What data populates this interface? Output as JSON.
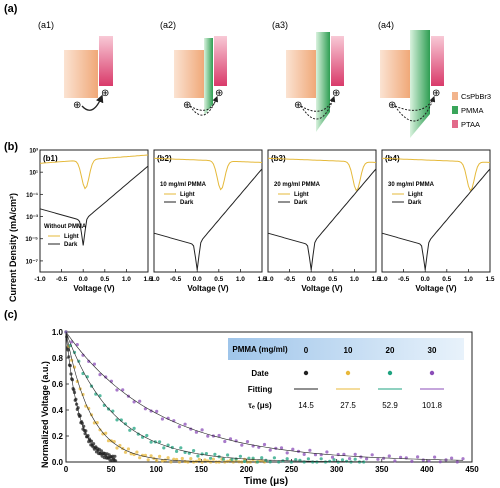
{
  "panel_a": {
    "label": "(a)",
    "subpanels": [
      "(a1)",
      "(a2)",
      "(a3)",
      "(a4)"
    ],
    "charge_symbol": "⊕",
    "legend": [
      {
        "name": "CsPbBr3",
        "color": "#f2b48c"
      },
      {
        "name": "PMMA",
        "color": "#3aa55a"
      },
      {
        "name": "PTAA",
        "color": "#e26a8a"
      }
    ]
  },
  "panel_b": {
    "label": "(b)",
    "ylabel": "Current Density (mA/cm²)",
    "panels": [
      {
        "label": "(b1)",
        "condition": "Without PMMA"
      },
      {
        "label": "(b2)",
        "condition": "10 mg/ml PMMA"
      },
      {
        "label": "(b3)",
        "condition": "20 mg/ml PMMA"
      },
      {
        "label": "(b4)",
        "condition": "30 mg/ml PMMA"
      }
    ],
    "legend": [
      "Light",
      "Dark"
    ],
    "xlabel": "Voltage (V)",
    "xticks": [
      "-1.0",
      "-0.5",
      "0.0",
      "0.5",
      "1.0",
      "1.5"
    ],
    "yticks": [
      "10³",
      "10¹",
      "10⁻¹",
      "10⁻³",
      "10⁻⁵",
      "10⁻⁷"
    ]
  },
  "chart_data": {
    "type": "scatter",
    "panel_label": "(c)",
    "xlabel": "Time (μs)",
    "ylabel": "Normalized Voltage (a.u.)",
    "xlim": [
      0,
      450
    ],
    "ylim": [
      0,
      1.0
    ],
    "xticks": [
      "0",
      "50",
      "100",
      "150",
      "200",
      "250",
      "300",
      "350",
      "400",
      "450"
    ],
    "yticks": [
      "0.0",
      "0.2",
      "0.4",
      "0.6",
      "0.8",
      "1.0"
    ],
    "legend_table": {
      "header": "PMMA (mg/ml)",
      "rows": [
        "Date",
        "Fitting",
        "τₑ (μs)"
      ],
      "columns": [
        "0",
        "10",
        "20",
        "30"
      ],
      "tau": [
        "14.5",
        "27.5",
        "52.9",
        "101.8"
      ],
      "colors": [
        "#222222",
        "#e8b83a",
        "#1fa380",
        "#8b4db8"
      ]
    },
    "series": [
      {
        "name": "0",
        "tau": 14.5,
        "xmax": 55,
        "color": "#222222"
      },
      {
        "name": "10",
        "tau": 27.5,
        "xmax": 220,
        "color": "#e8b83a"
      },
      {
        "name": "20",
        "tau": 52.9,
        "xmax": 330,
        "color": "#1fa380"
      },
      {
        "name": "30",
        "tau": 101.8,
        "xmax": 440,
        "color": "#8b4db8"
      }
    ]
  }
}
